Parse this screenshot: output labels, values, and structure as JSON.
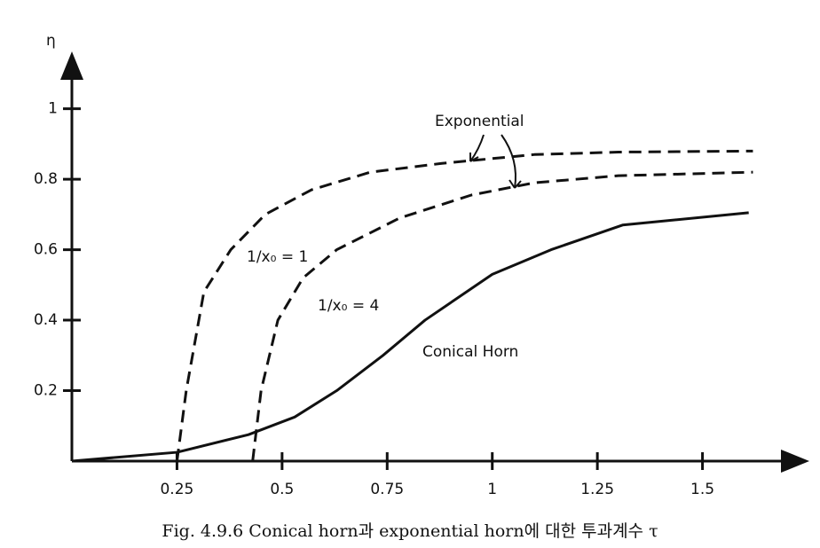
{
  "chart_data": {
    "type": "line",
    "y_label": "η",
    "caption": "Fig. 4.9.6  Conical horn과 exponential horn에 대한 투과계수 τ",
    "xlim": [
      0,
      1.75
    ],
    "ylim": [
      0,
      1.13
    ],
    "xticks": [
      0.25,
      0.5,
      0.75,
      1,
      1.25,
      1.5
    ],
    "yticks": [
      0.2,
      0.4,
      0.6,
      0.8,
      1
    ],
    "annotations": [
      "Exponential"
    ],
    "series": [
      {
        "name": "1/x₀ = 1",
        "color": "#111111",
        "style": "dashed",
        "x": [
          0.25,
          0.272,
          0.314,
          0.378,
          0.46,
          0.57,
          0.71,
          0.88,
          1.1,
          1.3,
          1.62
        ],
        "values": [
          0,
          0.2,
          0.48,
          0.6,
          0.7,
          0.77,
          0.82,
          0.845,
          0.87,
          0.877,
          0.88
        ]
      },
      {
        "name": "1/x₀ = 4",
        "color": "#111111",
        "style": "dashed",
        "x": [
          0.43,
          0.45,
          0.49,
          0.55,
          0.63,
          0.78,
          0.95,
          1.1,
          1.3,
          1.62
        ],
        "values": [
          0,
          0.2,
          0.4,
          0.52,
          0.6,
          0.69,
          0.755,
          0.79,
          0.81,
          0.82
        ]
      },
      {
        "name": "Conical Horn",
        "color": "#111111",
        "style": "solid",
        "x": [
          0,
          0.25,
          0.42,
          0.53,
          0.63,
          0.74,
          0.84,
          1,
          1.14,
          1.31,
          1.61
        ],
        "values": [
          0,
          0.025,
          0.075,
          0.125,
          0.2,
          0.3,
          0.4,
          0.53,
          0.6,
          0.67,
          0.705
        ]
      }
    ]
  }
}
